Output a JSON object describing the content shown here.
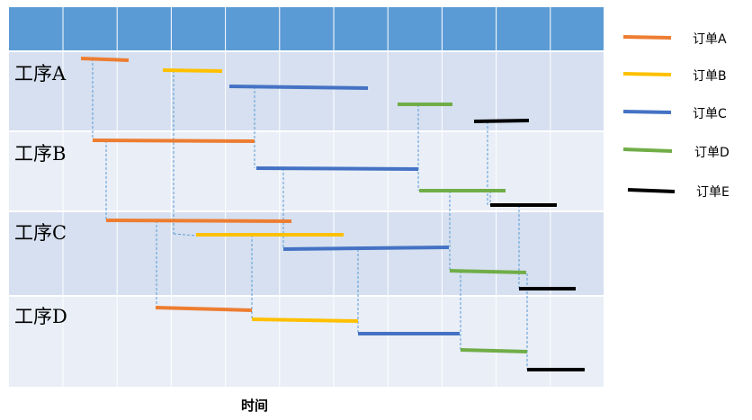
{
  "diagram": {
    "xlabel": "时间",
    "processes": [
      "工序A",
      "工序B",
      "工序C",
      "工序D"
    ],
    "orders": [
      {
        "name": "订单A",
        "color": "#ED7D31"
      },
      {
        "name": "订单B",
        "color": "#FFC000"
      },
      {
        "name": "订单C",
        "color": "#4472C4"
      },
      {
        "name": "订单D",
        "color": "#70AD47"
      },
      {
        "name": "订单E",
        "color": "#000000"
      }
    ],
    "colors": {
      "header": "#5B9BD5",
      "band_dark": "#D6E0F0",
      "band_light": "#E9EEF7",
      "grid": "#FFFFFF",
      "connector": "#5B9BD5"
    }
  }
}
